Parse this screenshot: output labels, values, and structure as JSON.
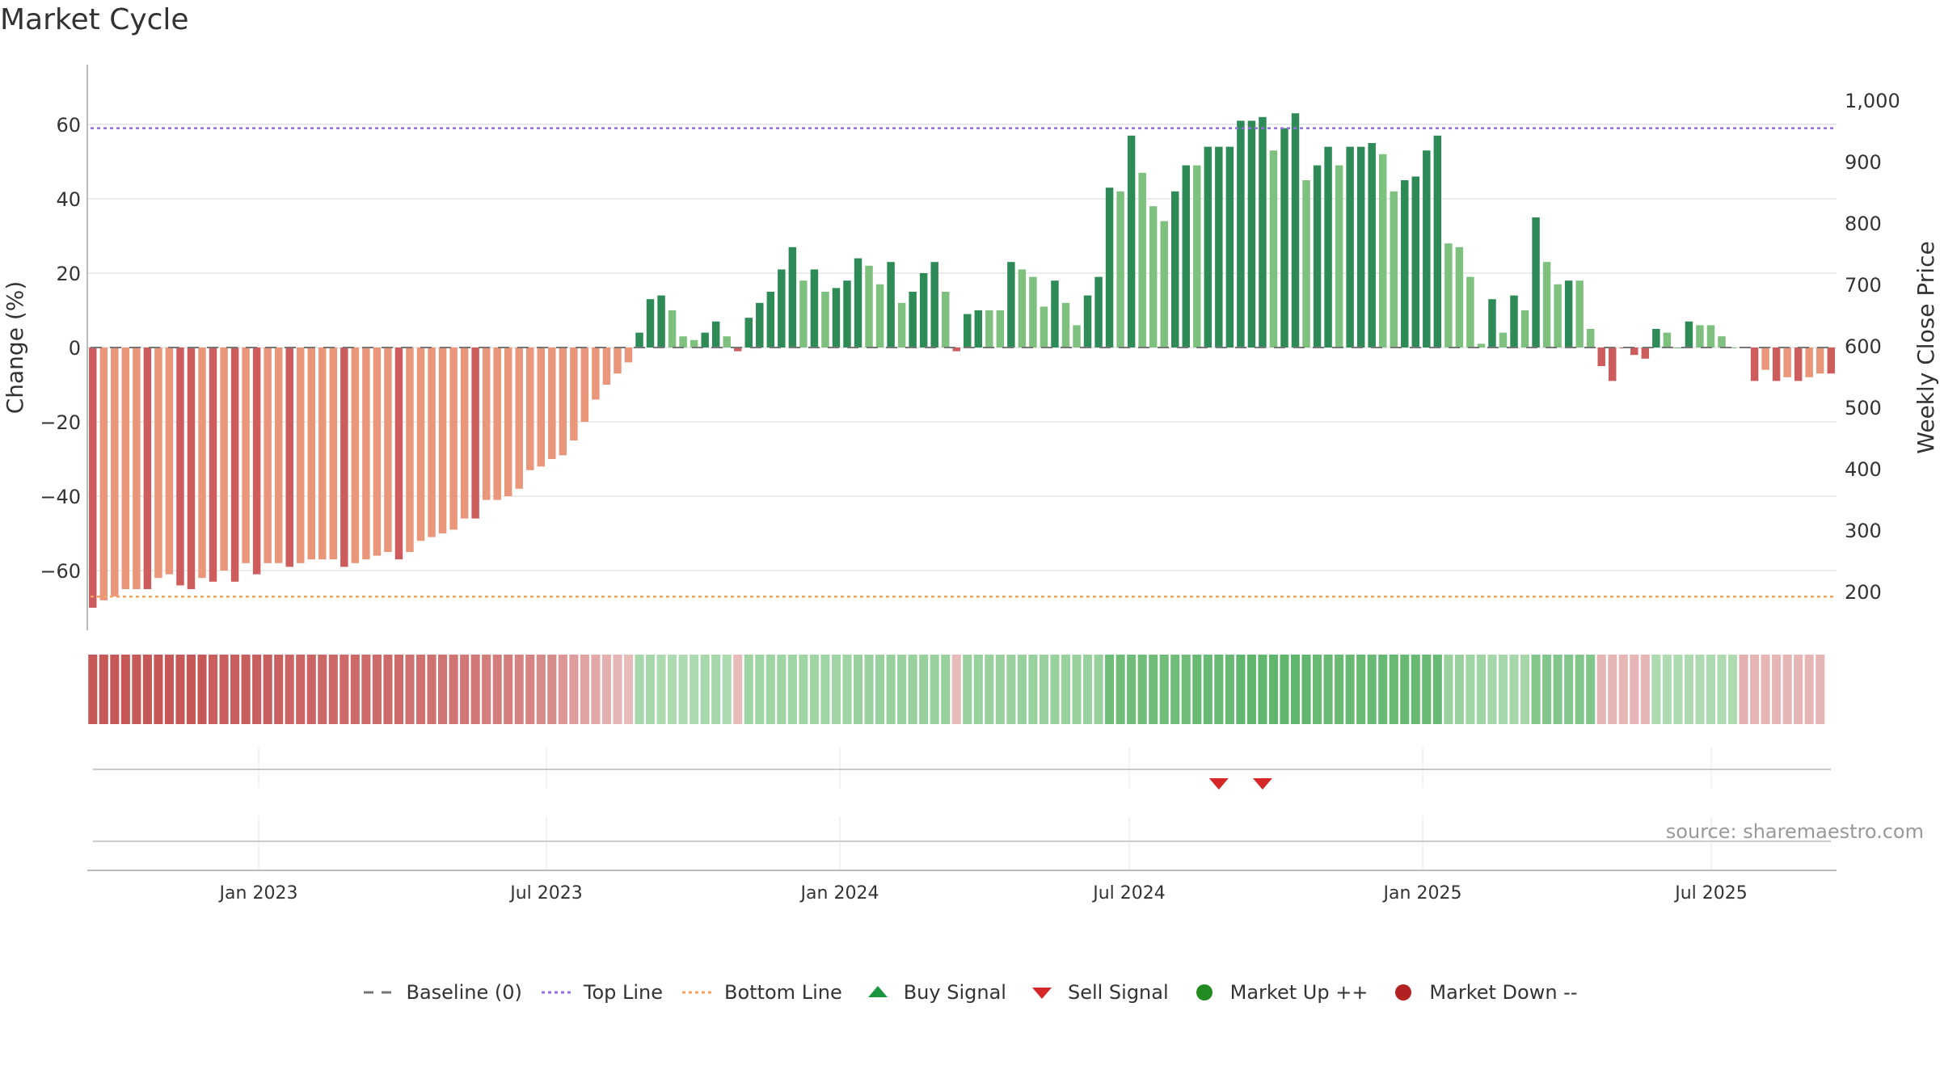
{
  "title": "Market Cycle",
  "source_text": "source: sharemaestro.com",
  "colors": {
    "strong_up": "#2e8b57",
    "up": "#7ec17f",
    "strong_down": "#cd5c5c",
    "down": "#e9967a",
    "top_line": "#9370db",
    "bottom_line": "#f4a460",
    "baseline": "#777777",
    "sell_signal": "#d62728",
    "buy_signal": "#2ca02c",
    "market_up": "#228b22",
    "market_down": "#b22222"
  },
  "legend": [
    {
      "label": "Baseline (0)",
      "icon": "dash-line",
      "color": "#777777"
    },
    {
      "label": "Top Line",
      "icon": "dotted-line",
      "color": "#9370db"
    },
    {
      "label": "Bottom Line",
      "icon": "dotted-line",
      "color": "#f4a460"
    },
    {
      "label": "Buy Signal",
      "icon": "triangle-up",
      "color": "#1a9641"
    },
    {
      "label": "Sell Signal",
      "icon": "triangle-down",
      "color": "#d62728"
    },
    {
      "label": "Market Up ++",
      "icon": "circle",
      "color": "#228b22"
    },
    {
      "label": "Market Down --",
      "icon": "circle",
      "color": "#b22222"
    }
  ],
  "chart_data": {
    "type": "bar",
    "y_left_label": "Change (%)",
    "y_right_label": "Weekly Close Price",
    "y_left_range": [
      -76,
      76
    ],
    "y_left_ticks": [
      -60,
      -40,
      -20,
      0,
      20,
      40,
      60
    ],
    "y_right_ticks": [
      200,
      300,
      400,
      500,
      600,
      700,
      800,
      900,
      1000
    ],
    "x_ticks": [
      "Jan 2023",
      "Jul 2023",
      "Jan 2024",
      "Jul 2024",
      "Jan 2025",
      "Jul 2025"
    ],
    "top_line": 59,
    "bottom_line": -67,
    "baseline": 0,
    "values": [
      -70,
      -68,
      -67,
      -65,
      -65,
      -65,
      -62,
      -61,
      -64,
      -65,
      -62,
      -63,
      -60,
      -63,
      -58,
      -61,
      -58,
      -58,
      -59,
      -58,
      -57,
      -57,
      -57,
      -59,
      -58,
      -57,
      -56,
      -55,
      -57,
      -55,
      -52,
      -51,
      -50,
      -49,
      -46,
      -46,
      -41,
      -41,
      -40,
      -38,
      -33,
      -32,
      -30,
      -29,
      -25,
      -20,
      -14,
      -10,
      -7,
      -4,
      4,
      13,
      14,
      10,
      3,
      2,
      4,
      7,
      3,
      -1,
      8,
      12,
      15,
      21,
      27,
      18,
      21,
      15,
      16,
      18,
      24,
      22,
      17,
      23,
      12,
      15,
      20,
      23,
      15,
      -1,
      9,
      10,
      10,
      10,
      23,
      21,
      19,
      11,
      18,
      12,
      6,
      14,
      19,
      43,
      42,
      57,
      47,
      38,
      34,
      42,
      49,
      49,
      54,
      54,
      54,
      61,
      61,
      62,
      53,
      59,
      63,
      45,
      49,
      54,
      49,
      54,
      54,
      55,
      52,
      42,
      45,
      46,
      53,
      57,
      28,
      27,
      19,
      1,
      13,
      4,
      14,
      10,
      35,
      23,
      17,
      18,
      18,
      5,
      -5,
      -9,
      0,
      -2,
      -3,
      5,
      4,
      0,
      7,
      6,
      6,
      3,
      0,
      0,
      -9,
      -6,
      -9,
      -8,
      -9,
      -8,
      -7,
      -7
    ],
    "strength": [
      "sd",
      "d",
      "d",
      "d",
      "d",
      "sd",
      "d",
      "d",
      "sd",
      "sd",
      "d",
      "sd",
      "d",
      "sd",
      "d",
      "sd",
      "d",
      "d",
      "sd",
      "d",
      "d",
      "d",
      "d",
      "sd",
      "d",
      "d",
      "d",
      "d",
      "sd",
      "d",
      "d",
      "d",
      "d",
      "d",
      "d",
      "sd",
      "d",
      "d",
      "d",
      "d",
      "d",
      "d",
      "d",
      "d",
      "d",
      "d",
      "d",
      "d",
      "d",
      "d",
      "su",
      "su",
      "su",
      "u",
      "u",
      "u",
      "su",
      "su",
      "u",
      "sd",
      "su",
      "su",
      "su",
      "su",
      "su",
      "u",
      "su",
      "u",
      "su",
      "su",
      "su",
      "u",
      "u",
      "su",
      "u",
      "su",
      "su",
      "su",
      "u",
      "sd",
      "su",
      "su",
      "u",
      "u",
      "su",
      "u",
      "u",
      "u",
      "su",
      "u",
      "u",
      "su",
      "su",
      "su",
      "u",
      "su",
      "u",
      "u",
      "u",
      "su",
      "su",
      "u",
      "su",
      "su",
      "su",
      "su",
      "su",
      "su",
      "u",
      "su",
      "su",
      "u",
      "su",
      "su",
      "u",
      "su",
      "su",
      "su",
      "u",
      "u",
      "su",
      "su",
      "su",
      "su",
      "u",
      "u",
      "u",
      "u",
      "su",
      "u",
      "su",
      "u",
      "su",
      "u",
      "u",
      "su",
      "u",
      "u",
      "sd",
      "sd",
      "sd",
      "sd",
      "sd",
      "su",
      "u",
      "u",
      "su",
      "u",
      "u",
      "u",
      "u",
      "u",
      "sd",
      "d",
      "sd",
      "d",
      "sd",
      "d",
      "d",
      "sd"
    ],
    "heatmap_levels": [
      1.0,
      1.0,
      1.0,
      1.0,
      1.0,
      1.0,
      1.0,
      1.0,
      1.0,
      1.0,
      1.0,
      0.95,
      0.95,
      0.95,
      0.95,
      0.95,
      0.95,
      0.92,
      0.9,
      0.9,
      0.9,
      0.88,
      0.88,
      0.86,
      0.86,
      0.85,
      0.85,
      0.85,
      0.85,
      0.8,
      0.8,
      0.8,
      0.78,
      0.78,
      0.75,
      0.75,
      0.7,
      0.7,
      0.7,
      0.65,
      0.65,
      0.6,
      0.6,
      0.5,
      0.45,
      0.4,
      0.35,
      0.3,
      0.25,
      0.2,
      -0.35,
      -0.35,
      -0.3,
      -0.3,
      -0.3,
      -0.3,
      -0.35,
      -0.35,
      -0.3,
      0.2,
      -0.4,
      -0.4,
      -0.4,
      -0.4,
      -0.4,
      -0.4,
      -0.4,
      -0.4,
      -0.4,
      -0.4,
      -0.45,
      -0.45,
      -0.45,
      -0.45,
      -0.45,
      -0.45,
      -0.45,
      -0.45,
      -0.45,
      0.2,
      -0.45,
      -0.45,
      -0.45,
      -0.45,
      -0.45,
      -0.45,
      -0.45,
      -0.45,
      -0.45,
      -0.45,
      -0.45,
      -0.45,
      -0.45,
      -0.75,
      -0.75,
      -0.75,
      -0.75,
      -0.75,
      -0.75,
      -0.75,
      -0.75,
      -0.8,
      -0.8,
      -0.8,
      -0.8,
      -0.85,
      -0.85,
      -0.85,
      -0.85,
      -0.85,
      -0.85,
      -0.85,
      -0.8,
      -0.8,
      -0.8,
      -0.8,
      -0.8,
      -0.8,
      -0.8,
      -0.8,
      -0.8,
      -0.8,
      -0.8,
      -0.8,
      -0.45,
      -0.45,
      -0.4,
      -0.4,
      -0.35,
      -0.35,
      -0.35,
      -0.35,
      -0.6,
      -0.6,
      -0.6,
      -0.6,
      -0.6,
      -0.6,
      0.25,
      0.25,
      0.25,
      0.25,
      0.25,
      -0.3,
      -0.3,
      -0.3,
      -0.3,
      -0.3,
      -0.3,
      -0.3,
      -0.3,
      0.3,
      0.25,
      0.25,
      0.25,
      0.25,
      0.25,
      0.25,
      0.25
    ],
    "sell_signals_at_bar": [
      103,
      107
    ],
    "buy_signals_at_bar": []
  }
}
